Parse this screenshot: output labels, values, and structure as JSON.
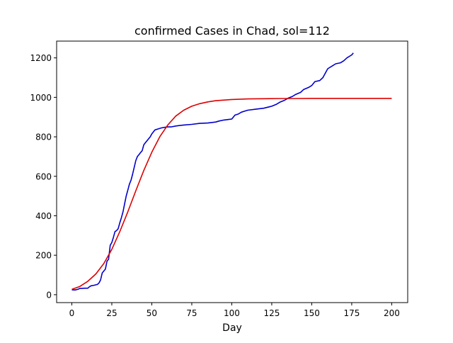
{
  "chart_data": {
    "type": "line",
    "title": "confirmed Cases in Chad, sol=112",
    "xlabel": "Day",
    "ylabel": "",
    "xlim": [
      -9.5,
      210
    ],
    "ylim": [
      -40,
      1285
    ],
    "xticks": [
      0,
      25,
      50,
      75,
      100,
      125,
      150,
      175,
      200
    ],
    "yticks": [
      0,
      200,
      400,
      600,
      800,
      1000,
      1200
    ],
    "grid": false,
    "legend": "none",
    "series": [
      {
        "color": "#0000cc",
        "x": [
          0,
          2,
          4,
          5,
          6,
          8,
          10,
          11,
          12,
          14,
          15,
          16,
          17,
          18,
          19,
          20,
          21,
          22,
          23,
          24,
          25,
          26,
          27,
          28,
          29,
          30,
          31,
          32,
          33,
          34,
          35,
          36,
          37,
          38,
          39,
          40,
          41,
          42,
          43,
          44,
          45,
          46,
          47,
          48,
          49,
          50,
          52,
          54,
          56,
          58,
          60,
          62,
          65,
          70,
          75,
          80,
          85,
          90,
          92,
          95,
          98,
          100,
          102,
          104,
          106,
          108,
          110,
          115,
          120,
          125,
          128,
          130,
          133,
          135,
          138,
          140,
          143,
          145,
          148,
          150,
          152,
          155,
          157,
          160,
          163,
          165,
          168,
          170,
          172,
          175,
          176
        ],
        "y": [
          25,
          24,
          28,
          32,
          32,
          33,
          33,
          40,
          45,
          48,
          50,
          52,
          60,
          75,
          110,
          120,
          130,
          170,
          180,
          250,
          265,
          290,
          320,
          325,
          335,
          365,
          390,
          420,
          460,
          500,
          530,
          560,
          580,
          610,
          645,
          680,
          700,
          710,
          720,
          730,
          760,
          770,
          780,
          790,
          800,
          815,
          835,
          840,
          845,
          848,
          850,
          850,
          855,
          860,
          863,
          868,
          870,
          875,
          880,
          885,
          888,
          890,
          910,
          915,
          925,
          930,
          935,
          940,
          945,
          955,
          965,
          975,
          985,
          995,
          1005,
          1015,
          1025,
          1040,
          1050,
          1060,
          1080,
          1085,
          1100,
          1145,
          1160,
          1170,
          1175,
          1185,
          1200,
          1215,
          1225
        ]
      },
      {
        "color": "#dd0000",
        "x": [
          0,
          5,
          10,
          15,
          20,
          25,
          30,
          35,
          40,
          45,
          50,
          55,
          60,
          65,
          70,
          75,
          80,
          85,
          90,
          100,
          110,
          120,
          130,
          140,
          150,
          175,
          200
        ],
        "y": [
          27,
          42,
          68,
          105,
          158,
          230,
          320,
          420,
          527,
          630,
          722,
          800,
          860,
          905,
          935,
          955,
          968,
          977,
          983,
          989,
          992,
          993,
          994,
          994,
          995,
          995,
          995
        ]
      }
    ]
  }
}
